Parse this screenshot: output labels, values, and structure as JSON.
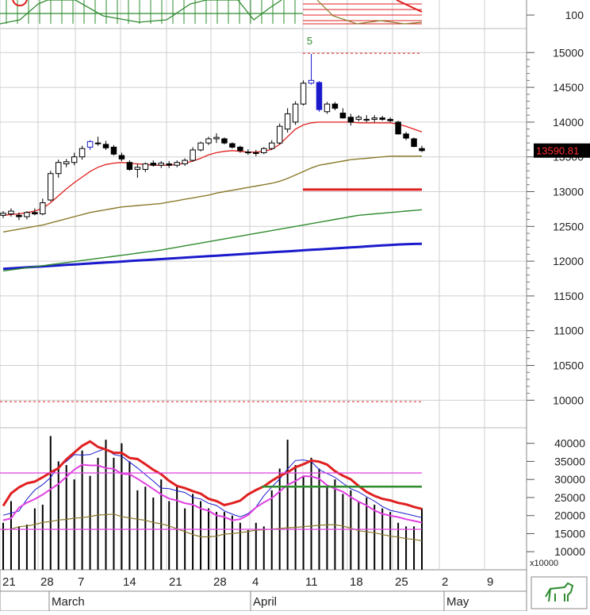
{
  "chart_data": {
    "type": "candlestick",
    "price_axis": {
      "ticks": [
        "10000",
        "10500",
        "11000",
        "11500",
        "12000",
        "12500",
        "13000",
        "13500",
        "14000",
        "14500",
        "15000"
      ],
      "ylim": [
        9650,
        15300
      ]
    },
    "top_panel_axis": {
      "ticks": [
        "100"
      ]
    },
    "volume_axis": {
      "ticks": [
        "10000",
        "15000",
        "20000",
        "25000",
        "30000",
        "35000",
        "40000"
      ],
      "multiplier": "x10000",
      "ylim": [
        5000,
        43000
      ]
    },
    "x_axis": {
      "day_labels": [
        "21",
        "28",
        "7",
        "14",
        "21",
        "28",
        "4",
        "11",
        "18",
        "25",
        "2",
        "9"
      ],
      "month_labels": [
        "March",
        "April",
        "May"
      ]
    },
    "last_price": "13590.81",
    "peak_marker": "5",
    "candles": [
      {
        "o": 12660,
        "h": 12720,
        "l": 12620,
        "c": 12690
      },
      {
        "o": 12680,
        "h": 12760,
        "l": 12640,
        "c": 12720
      },
      {
        "o": 12660,
        "h": 12700,
        "l": 12590,
        "c": 12640
      },
      {
        "o": 12640,
        "h": 12720,
        "l": 12600,
        "c": 12700
      },
      {
        "o": 12700,
        "h": 12760,
        "l": 12660,
        "c": 12680
      },
      {
        "o": 12680,
        "h": 12900,
        "l": 12660,
        "c": 12840
      },
      {
        "o": 12880,
        "h": 13300,
        "l": 12860,
        "c": 13260
      },
      {
        "o": 13260,
        "h": 13460,
        "l": 13200,
        "c": 13420
      },
      {
        "o": 13400,
        "h": 13470,
        "l": 13350,
        "c": 13430
      },
      {
        "o": 13420,
        "h": 13560,
        "l": 13380,
        "c": 13500
      },
      {
        "o": 13500,
        "h": 13660,
        "l": 13460,
        "c": 13620
      },
      {
        "o": 13640,
        "h": 13740,
        "l": 13600,
        "c": 13720
      },
      {
        "o": 13700,
        "h": 13790,
        "l": 13660,
        "c": 13700
      },
      {
        "o": 13680,
        "h": 13730,
        "l": 13600,
        "c": 13630
      },
      {
        "o": 13640,
        "h": 13670,
        "l": 13520,
        "c": 13540
      },
      {
        "o": 13520,
        "h": 13560,
        "l": 13440,
        "c": 13470
      },
      {
        "o": 13420,
        "h": 13450,
        "l": 13300,
        "c": 13320
      },
      {
        "o": 13320,
        "h": 13400,
        "l": 13200,
        "c": 13350
      },
      {
        "o": 13320,
        "h": 13420,
        "l": 13280,
        "c": 13400
      },
      {
        "o": 13410,
        "h": 13450,
        "l": 13360,
        "c": 13380
      },
      {
        "o": 13380,
        "h": 13440,
        "l": 13340,
        "c": 13410
      },
      {
        "o": 13400,
        "h": 13440,
        "l": 13340,
        "c": 13380
      },
      {
        "o": 13380,
        "h": 13450,
        "l": 13350,
        "c": 13420
      },
      {
        "o": 13400,
        "h": 13480,
        "l": 13370,
        "c": 13450
      },
      {
        "o": 13450,
        "h": 13640,
        "l": 13430,
        "c": 13600
      },
      {
        "o": 13600,
        "h": 13720,
        "l": 13580,
        "c": 13700
      },
      {
        "o": 13700,
        "h": 13790,
        "l": 13670,
        "c": 13760
      },
      {
        "o": 13760,
        "h": 13840,
        "l": 13700,
        "c": 13780
      },
      {
        "o": 13760,
        "h": 13780,
        "l": 13680,
        "c": 13700
      },
      {
        "o": 13690,
        "h": 13710,
        "l": 13620,
        "c": 13640
      },
      {
        "o": 13640,
        "h": 13660,
        "l": 13560,
        "c": 13590
      },
      {
        "o": 13570,
        "h": 13610,
        "l": 13530,
        "c": 13570
      },
      {
        "o": 13550,
        "h": 13600,
        "l": 13510,
        "c": 13560
      },
      {
        "o": 13560,
        "h": 13640,
        "l": 13540,
        "c": 13620
      },
      {
        "o": 13620,
        "h": 13740,
        "l": 13600,
        "c": 13700
      },
      {
        "o": 13700,
        "h": 13980,
        "l": 13680,
        "c": 13940
      },
      {
        "o": 13900,
        "h": 14200,
        "l": 13850,
        "c": 14120
      },
      {
        "o": 14000,
        "h": 14300,
        "l": 13960,
        "c": 14260
      },
      {
        "o": 14260,
        "h": 14600,
        "l": 14240,
        "c": 14560
      },
      {
        "o": 14560,
        "h": 14980,
        "l": 14540,
        "c": 14600
      },
      {
        "o": 14570,
        "h": 14590,
        "l": 14150,
        "c": 14180
      },
      {
        "o": 14150,
        "h": 14290,
        "l": 14120,
        "c": 14260
      },
      {
        "o": 14260,
        "h": 14290,
        "l": 14170,
        "c": 14200
      },
      {
        "o": 14130,
        "h": 14200,
        "l": 14050,
        "c": 14060
      },
      {
        "o": 14070,
        "h": 14120,
        "l": 13950,
        "c": 14000
      },
      {
        "o": 14040,
        "h": 14100,
        "l": 14010,
        "c": 14070
      },
      {
        "o": 14040,
        "h": 14100,
        "l": 14000,
        "c": 14030
      },
      {
        "o": 14040,
        "h": 14100,
        "l": 14000,
        "c": 14060
      },
      {
        "o": 14060,
        "h": 14090,
        "l": 14020,
        "c": 14040
      },
      {
        "o": 14040,
        "h": 14070,
        "l": 14000,
        "c": 14020
      },
      {
        "o": 14000,
        "h": 14020,
        "l": 13820,
        "c": 13830
      },
      {
        "o": 13830,
        "h": 13860,
        "l": 13740,
        "c": 13770
      },
      {
        "o": 13760,
        "h": 13780,
        "l": 13640,
        "c": 13650
      },
      {
        "o": 13620,
        "h": 13660,
        "l": 13570,
        "c": 13590
      }
    ],
    "ma_short": [
      12660,
      12670,
      12680,
      12700,
      12720,
      12760,
      12840,
      12940,
      13040,
      13130,
      13210,
      13290,
      13350,
      13390,
      13410,
      13420,
      13410,
      13400,
      13390,
      13380,
      13380,
      13380,
      13390,
      13410,
      13440,
      13480,
      13530,
      13560,
      13580,
      13590,
      13580,
      13570,
      13570,
      13580,
      13610,
      13680,
      13790,
      13900,
      13960,
      13990,
      14000,
      14000,
      14000,
      14000,
      14000,
      13990,
      13990,
      13990,
      13990,
      13990,
      13970,
      13940,
      13900,
      13860
    ],
    "ma_medium": [
      12420,
      12440,
      12460,
      12480,
      12500,
      12520,
      12550,
      12580,
      12610,
      12640,
      12670,
      12700,
      12720,
      12740,
      12760,
      12780,
      12790,
      12800,
      12810,
      12820,
      12830,
      12850,
      12870,
      12890,
      12910,
      12930,
      12950,
      12980,
      13000,
      13020,
      13040,
      13060,
      13080,
      13100,
      13120,
      13150,
      13190,
      13240,
      13290,
      13340,
      13380,
      13400,
      13420,
      13440,
      13460,
      13470,
      13480,
      13490,
      13500,
      13510,
      13510,
      13510,
      13510,
      13510
    ],
    "ma_long": [
      11860,
      11875,
      11890,
      11905,
      11920,
      11935,
      11950,
      11965,
      11980,
      11995,
      12010,
      12025,
      12040,
      12055,
      12070,
      12085,
      12100,
      12115,
      12130,
      12145,
      12160,
      12180,
      12200,
      12220,
      12240,
      12260,
      12280,
      12300,
      12320,
      12340,
      12360,
      12380,
      12400,
      12420,
      12440,
      12460,
      12480,
      12500,
      12520,
      12540,
      12560,
      12580,
      12600,
      12620,
      12640,
      12660,
      12670,
      12680,
      12690,
      12700,
      12710,
      12720,
      12730,
      12740
    ],
    "ma_trend": [
      11890,
      11897,
      11904,
      11911,
      11918,
      11925,
      11932,
      11939,
      11946,
      11953,
      11960,
      11967,
      11974,
      11981,
      11988,
      11995,
      12002,
      12009,
      12016,
      12023,
      12030,
      12037,
      12044,
      12051,
      12058,
      12065,
      12072,
      12079,
      12086,
      12093,
      12100,
      12107,
      12114,
      12121,
      12128,
      12135,
      12142,
      12149,
      12156,
      12163,
      12170,
      12177,
      12184,
      12191,
      12198,
      12205,
      12212,
      12219,
      12226,
      12233,
      12240,
      12245,
      12248,
      12250
    ],
    "volume": [
      18000,
      24000,
      17000,
      17500,
      22000,
      23000,
      42000,
      35000,
      34000,
      30000,
      38000,
      31000,
      36000,
      41000,
      36000,
      40000,
      35000,
      27000,
      28000,
      25000,
      30000,
      24000,
      28000,
      22000,
      26000,
      24000,
      22000,
      21000,
      21000,
      20000,
      18000,
      16000,
      18000,
      17000,
      27000,
      33000,
      41000,
      34000,
      31000,
      36000,
      33000,
      28000,
      30000,
      26000,
      27000,
      24000,
      25000,
      23000,
      22000,
      21000,
      18000,
      17000,
      17000,
      22000
    ]
  },
  "logo_text": ""
}
